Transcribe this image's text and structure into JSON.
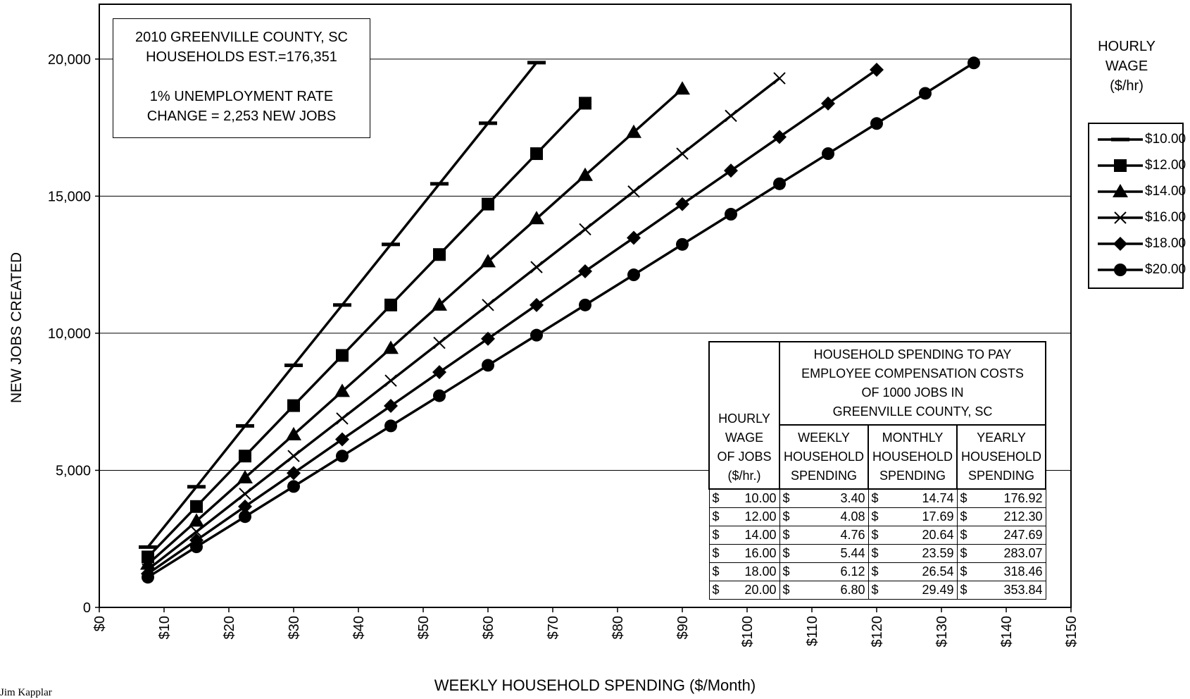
{
  "chart_data": {
    "type": "line",
    "xlabel": "WEEKLY HOUSEHOLD SPENDING ($/Month)",
    "ylabel": "NEW JOBS CREATED",
    "xlim": [
      0,
      150
    ],
    "ylim": [
      0,
      22000
    ],
    "x_ticks": [
      "$0",
      "$10",
      "$20",
      "$30",
      "$40",
      "$50",
      "$60",
      "$70",
      "$80",
      "$90",
      "$100",
      "$110",
      "$120",
      "$130",
      "$140",
      "$150"
    ],
    "y_ticks": [
      "0",
      "5,000",
      "10,000",
      "15,000",
      "20,000"
    ],
    "y_tick_values": [
      0,
      5000,
      10000,
      15000,
      20000
    ],
    "grid": "horizontal",
    "legend_placement": "right",
    "series": [
      {
        "name": "$10.00",
        "marker": "dash",
        "x": [
          7.5,
          15,
          22.5,
          30,
          37.5,
          45,
          52.5,
          60,
          67.5
        ],
        "y": [
          2200,
          4400,
          6620,
          8830,
          11030,
          13240,
          15450,
          17660,
          19870
        ]
      },
      {
        "name": "$12.00",
        "marker": "square",
        "x": [
          7.5,
          15,
          22.5,
          30,
          37.5,
          45,
          52.5,
          60,
          67.5,
          75
        ],
        "y": [
          1840,
          3680,
          5520,
          7360,
          9190,
          11030,
          12870,
          14710,
          16550,
          18390
        ]
      },
      {
        "name": "$14.00",
        "marker": "triangle",
        "x": [
          7.5,
          15,
          22.5,
          30,
          37.5,
          45,
          52.5,
          60,
          67.5,
          75,
          82.5,
          90
        ],
        "y": [
          1580,
          3150,
          4730,
          6300,
          7880,
          9450,
          11030,
          12610,
          14180,
          15760,
          17330,
          18910
        ]
      },
      {
        "name": "$16.00",
        "marker": "x",
        "x": [
          7.5,
          15,
          22.5,
          30,
          37.5,
          45,
          52.5,
          60,
          67.5,
          75,
          82.5,
          90,
          97.5,
          105
        ],
        "y": [
          1380,
          2760,
          4140,
          5520,
          6890,
          8270,
          9650,
          11030,
          12410,
          13790,
          15170,
          16550,
          17930,
          19300
        ]
      },
      {
        "name": "$18.00",
        "marker": "diamond",
        "x": [
          7.5,
          15,
          22.5,
          30,
          37.5,
          45,
          52.5,
          60,
          67.5,
          75,
          82.5,
          90,
          97.5,
          105,
          112.5,
          120
        ],
        "y": [
          1230,
          2450,
          3680,
          4900,
          6130,
          7350,
          8580,
          9800,
          11030,
          12260,
          13480,
          14710,
          15930,
          17160,
          18380,
          19610
        ]
      },
      {
        "name": "$20.00",
        "marker": "circle",
        "x": [
          7.5,
          15,
          22.5,
          30,
          37.5,
          45,
          52.5,
          60,
          67.5,
          75,
          82.5,
          90,
          97.5,
          105,
          112.5,
          120,
          127.5,
          135
        ],
        "y": [
          1100,
          2210,
          3310,
          4410,
          5520,
          6620,
          7720,
          8830,
          9930,
          11030,
          12130,
          13240,
          14340,
          15450,
          16550,
          17650,
          18750,
          19860
        ]
      }
    ]
  },
  "info_box": {
    "line1": "2010 GREENVILLE COUNTY, SC",
    "line2": "HOUSEHOLDS EST.=176,351",
    "line3": "1% UNEMPLOYMENT RATE",
    "line4": "CHANGE = 2,253 NEW JOBS"
  },
  "legend": {
    "title1": "HOURLY",
    "title2": "WAGE",
    "title3": "($/hr)"
  },
  "table": {
    "title1": "HOUSEHOLD SPENDING TO PAY",
    "title2": "EMPLOYEE COMPENSATION COSTS",
    "title3": "OF 1000 JOBS IN",
    "title4": "GREENVILLE COUNTY, SC",
    "col0_h1": "HOURLY",
    "col0_h2": "WAGE",
    "col0_h3": "OF JOBS",
    "col0_h4": "($/hr.)",
    "col1_h1": "WEEKLY",
    "col1_h2": "HOUSEHOLD",
    "col1_h3": "SPENDING",
    "col2_h1": "MONTHLY",
    "col2_h2": "HOUSEHOLD",
    "col2_h3": "SPENDING",
    "col3_h1": "YEARLY",
    "col3_h2": "HOUSEHOLD",
    "col3_h3": "SPENDING",
    "currency": "$",
    "rows": [
      {
        "wage": "10.00",
        "weekly": "3.40",
        "monthly": "14.74",
        "yearly": "176.92"
      },
      {
        "wage": "12.00",
        "weekly": "4.08",
        "monthly": "17.69",
        "yearly": "212.30"
      },
      {
        "wage": "14.00",
        "weekly": "4.76",
        "monthly": "20.64",
        "yearly": "247.69"
      },
      {
        "wage": "16.00",
        "weekly": "5.44",
        "monthly": "23.59",
        "yearly": "283.07"
      },
      {
        "wage": "18.00",
        "weekly": "6.12",
        "monthly": "26.54",
        "yearly": "318.46"
      },
      {
        "wage": "20.00",
        "weekly": "6.80",
        "monthly": "29.49",
        "yearly": "353.84"
      }
    ]
  },
  "author": "Jim Kapplar"
}
